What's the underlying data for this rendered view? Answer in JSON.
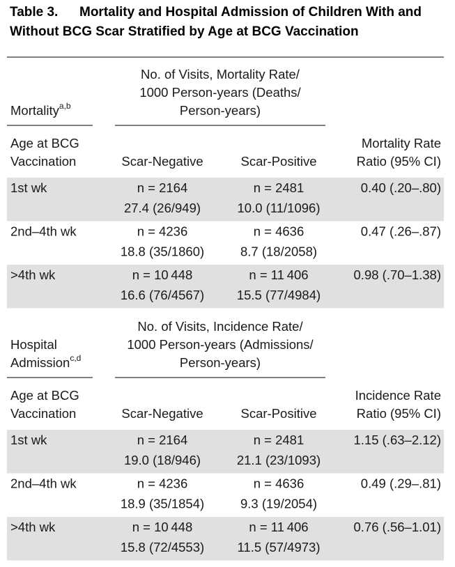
{
  "title": {
    "label": "Table 3.",
    "lines": [
      "Mortality and Hospital Admission of Children With and",
      "Without BCG Scar Stratified by Age at BCG Vaccination"
    ]
  },
  "sections": [
    {
      "group_label": [
        "Mortality"
      ],
      "group_label_sup": "a,b",
      "spanner": [
        "No. of Visits, Mortality Rate/",
        "1000 Person-years (Deaths/",
        "Person-years)"
      ],
      "columns": [
        [
          "Age at BCG",
          "Vaccination"
        ],
        [
          "Scar-Negative"
        ],
        [
          "Scar-Positive"
        ],
        [
          "Mortality Rate",
          "Ratio (95% CI)"
        ]
      ],
      "rows": [
        {
          "age": "1st wk",
          "scar_negative": [
            "n = 2164",
            "27.4 (26/949)"
          ],
          "scar_positive": [
            "n = 2481",
            "10.0 (11/1096)"
          ],
          "ratio": "0.40 (.20–.80)"
        },
        {
          "age": "2nd–4th wk",
          "scar_negative": [
            "n = 4236",
            "18.8 (35/1860)"
          ],
          "scar_positive": [
            "n = 4636",
            "8.7 (18/2058)"
          ],
          "ratio": "0.47 (.26–.87)"
        },
        {
          "age": ">4th wk",
          "scar_negative": [
            "n = 10 448",
            "16.6 (76/4567)"
          ],
          "scar_positive": [
            "n = 11 406",
            "15.5 (77/4984)"
          ],
          "ratio": "0.98 (.70–1.38)"
        }
      ]
    },
    {
      "group_label": [
        "Hospital",
        "Admission"
      ],
      "group_label_sup": "c,d",
      "spanner": [
        "No. of Visits, Incidence Rate/",
        "1000 Person-years (Admissions/",
        "Person-years)"
      ],
      "columns": [
        [
          "Age at BCG",
          "Vaccination"
        ],
        [
          "Scar-Negative"
        ],
        [
          "Scar-Positive"
        ],
        [
          "Incidence Rate",
          "Ratio (95% CI)"
        ]
      ],
      "rows": [
        {
          "age": "1st wk",
          "scar_negative": [
            "n = 2164",
            "19.0 (18/946)"
          ],
          "scar_positive": [
            "n = 2481",
            "21.1 (23/1093)"
          ],
          "ratio": "1.15 (.63–2.12)"
        },
        {
          "age": "2nd–4th wk",
          "scar_negative": [
            "n = 4236",
            "18.9 (35/1854)"
          ],
          "scar_positive": [
            "n = 4636",
            "9.3 (19/2054)"
          ],
          "ratio": "0.49 (.29–.81)"
        },
        {
          "age": ">4th wk",
          "scar_negative": [
            "n = 10 448",
            "15.8 (72/4553)"
          ],
          "scar_positive": [
            "n = 11 406",
            "11.5 (57/4973)"
          ],
          "ratio": "0.76 (.56–1.01)"
        }
      ]
    }
  ]
}
